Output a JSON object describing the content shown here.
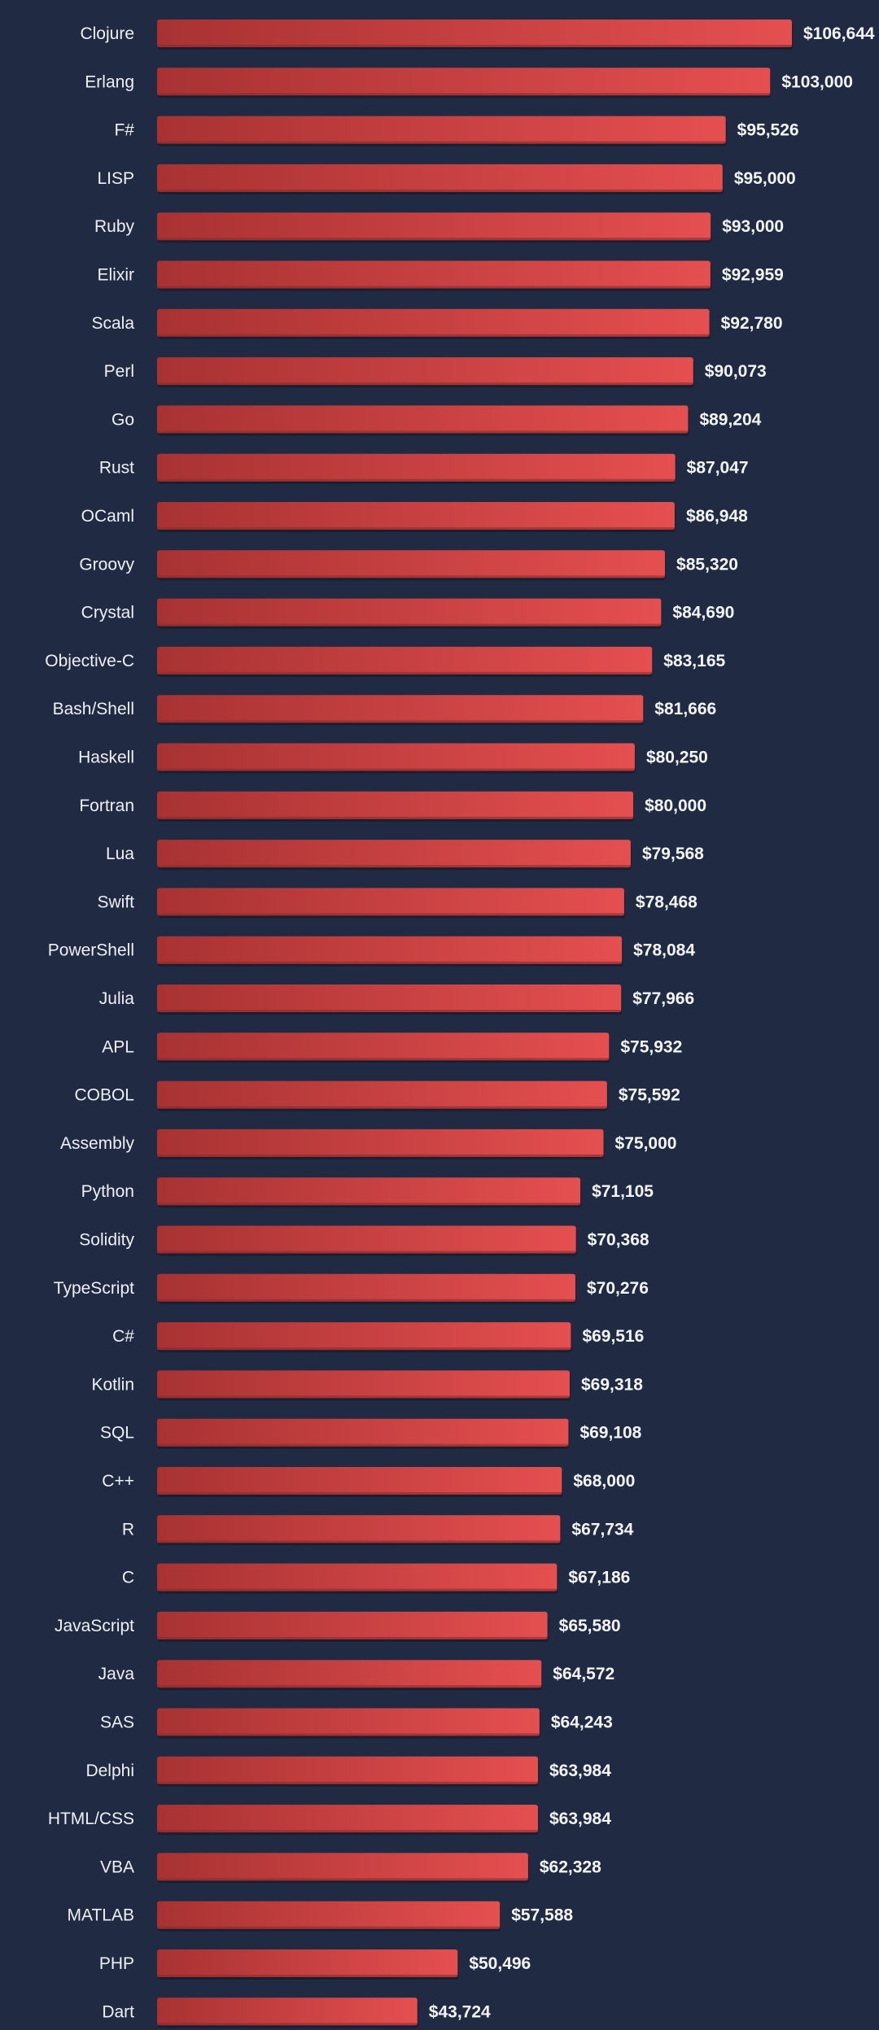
{
  "chart_data": {
    "type": "bar",
    "orientation": "horizontal",
    "categories": [
      "Clojure",
      "Erlang",
      "F#",
      "LISP",
      "Ruby",
      "Elixir",
      "Scala",
      "Perl",
      "Go",
      "Rust",
      "OCaml",
      "Groovy",
      "Crystal",
      "Objective-C",
      "Bash/Shell",
      "Haskell",
      "Fortran",
      "Lua",
      "Swift",
      "PowerShell",
      "Julia",
      "APL",
      "COBOL",
      "Assembly",
      "Python",
      "Solidity",
      "TypeScript",
      "C#",
      "Kotlin",
      "SQL",
      "C++",
      "R",
      "C",
      "JavaScript",
      "Java",
      "SAS",
      "Delphi",
      "HTML/CSS",
      "VBA",
      "MATLAB",
      "PHP",
      "Dart"
    ],
    "values": [
      106644,
      103000,
      95526,
      95000,
      93000,
      92959,
      92780,
      90073,
      89204,
      87047,
      86948,
      85320,
      84690,
      83165,
      81666,
      80250,
      80000,
      79568,
      78468,
      78084,
      77966,
      75932,
      75592,
      75000,
      71105,
      70368,
      70276,
      69516,
      69318,
      69108,
      68000,
      67734,
      67186,
      65580,
      64572,
      64243,
      63984,
      63984,
      62328,
      57588,
      50496,
      43724
    ],
    "value_labels": [
      "$106,644",
      "$103,000",
      "$95,526",
      "$95,000",
      "$93,000",
      "$92,959",
      "$92,780",
      "$90,073",
      "$89,204",
      "$87,047",
      "$86,948",
      "$85,320",
      "$84,690",
      "$83,165",
      "$81,666",
      "$80,250",
      "$80,000",
      "$79,568",
      "$78,468",
      "$78,084",
      "$77,966",
      "$75,932",
      "$75,592",
      "$75,000",
      "$71,105",
      "$70,368",
      "$70,276",
      "$69,516",
      "$69,318",
      "$69,108",
      "$68,000",
      "$67,734",
      "$67,186",
      "$65,580",
      "$64,572",
      "$64,243",
      "$63,984",
      "$63,984",
      "$62,328",
      "$57,588",
      "$50,496",
      "$43,724"
    ],
    "xlim": [
      0,
      106644
    ],
    "grid": false,
    "legend": "none"
  },
  "colors": {
    "background": "#202a42",
    "bar_dark": "#a83232",
    "bar_light": "#e54f50",
    "label_text": "#eef0f5"
  }
}
